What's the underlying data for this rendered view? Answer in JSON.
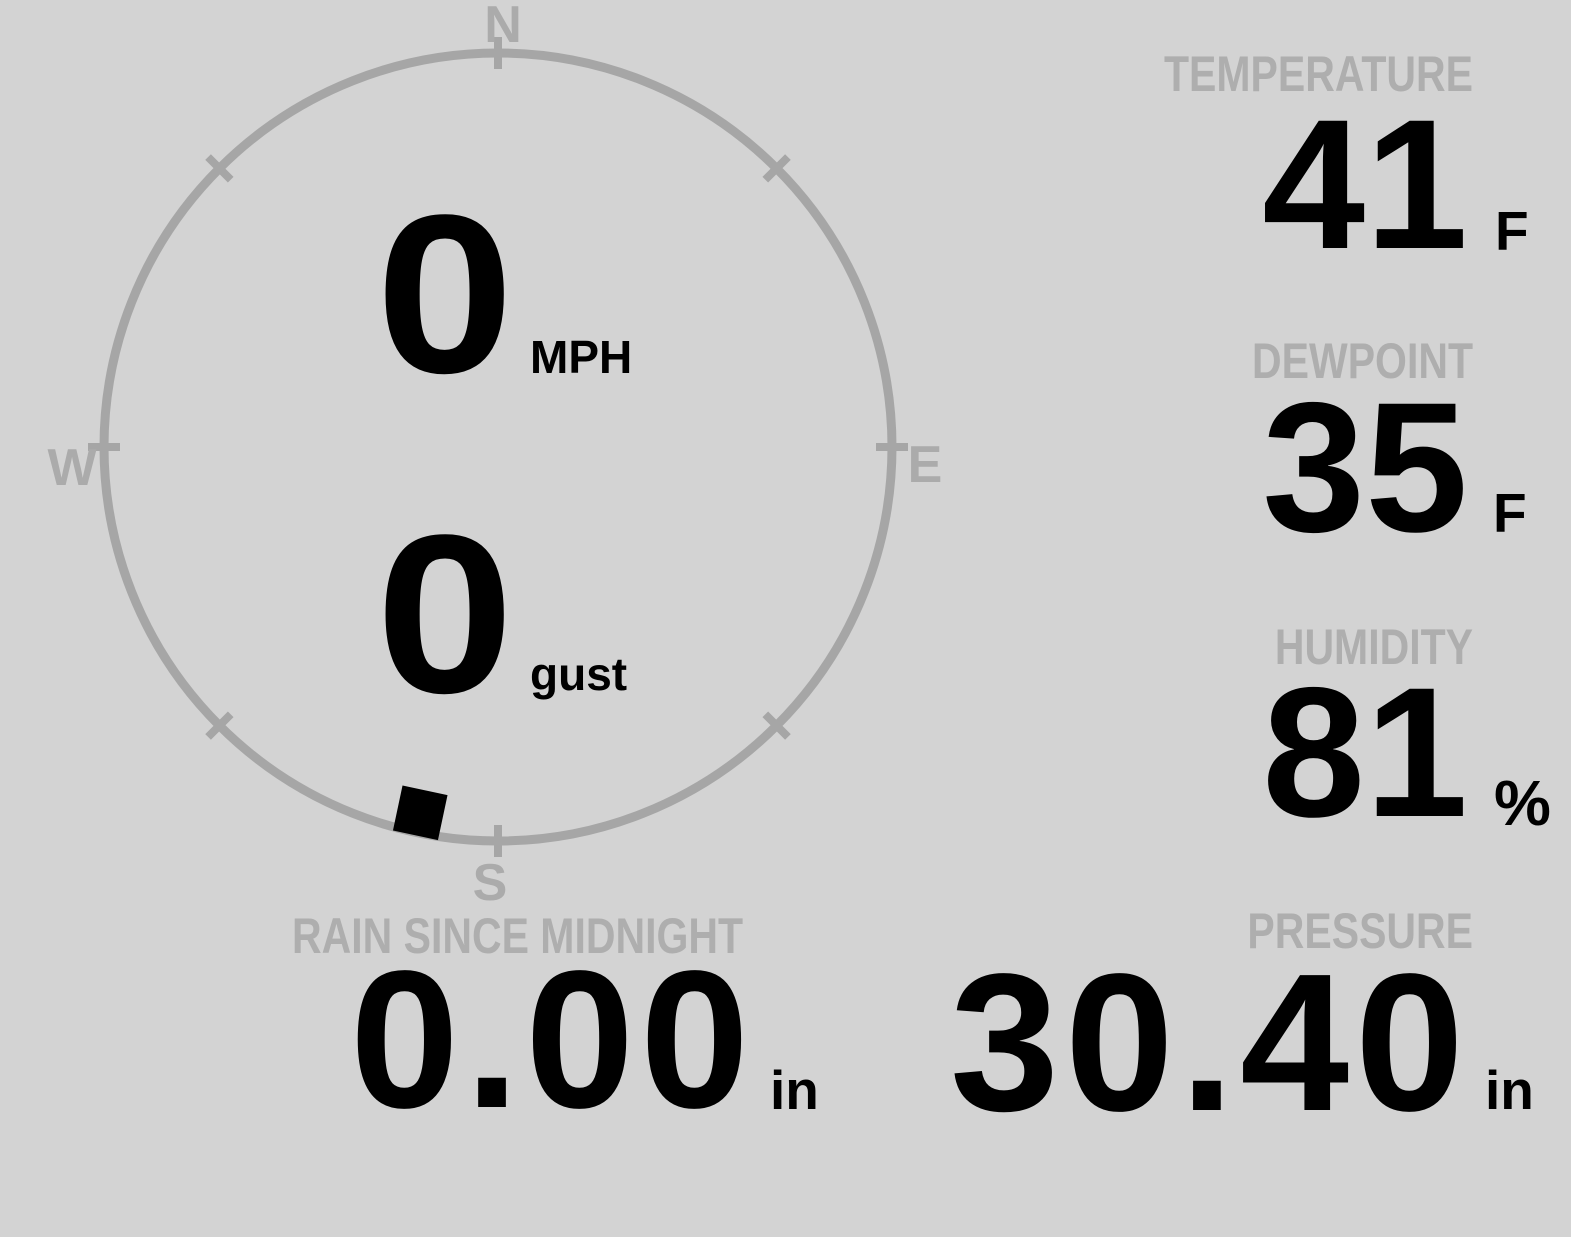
{
  "colors": {
    "background": "#d3d3d3",
    "label_gray": "#aeaeae",
    "ring_gray": "#a6a6a6",
    "value_black": "#000000"
  },
  "compass": {
    "cardinals": {
      "north": "N",
      "east": "E",
      "south": "S",
      "west": "W"
    },
    "wind_direction_deg": 192,
    "speed": {
      "value": "0",
      "unit": "MPH"
    },
    "gust": {
      "value": "0",
      "unit": "gust"
    }
  },
  "panels": {
    "temperature": {
      "label": "TEMPERATURE",
      "value": "41",
      "unit": "F"
    },
    "dewpoint": {
      "label": "DEWPOINT",
      "value": "35",
      "unit": "F"
    },
    "humidity": {
      "label": "HUMIDITY",
      "value": "81",
      "unit": "%"
    },
    "rain": {
      "label": "RAIN SINCE MIDNIGHT",
      "value": "0.00",
      "unit": "in"
    },
    "pressure": {
      "label": "PRESSURE",
      "value": "30.40",
      "unit": "in"
    }
  }
}
